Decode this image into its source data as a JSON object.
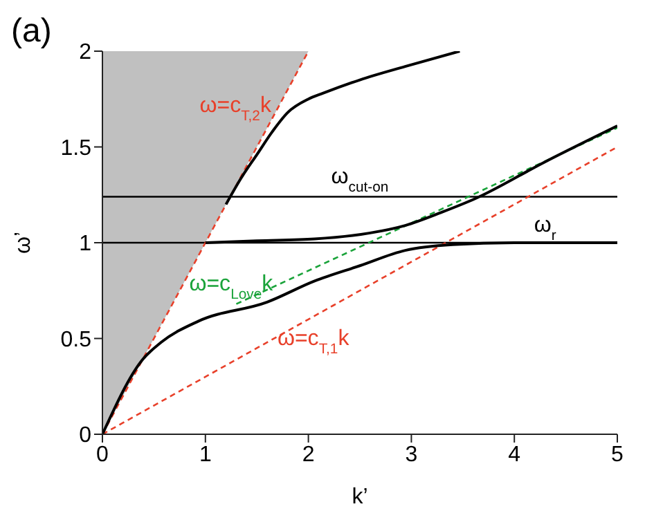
{
  "chart_data": {
    "type": "line",
    "title": "(a)",
    "xlabel": "k’",
    "ylabel": "ω’",
    "xlim": [
      0,
      5
    ],
    "ylim": [
      0,
      2
    ],
    "xticks": [
      0,
      1,
      2,
      3,
      4,
      5
    ],
    "yticks": [
      0,
      0.5,
      1,
      1.5,
      2
    ],
    "grid": false,
    "legend": false,
    "marker": "none",
    "series": [
      {
        "name": "ω=c$_{T,2}$k",
        "type": "line",
        "color": "#e8402a",
        "line_style": "dashed",
        "x": [
          0,
          0.5,
          1,
          1.5,
          2
        ],
        "values": [
          0,
          0.5,
          1,
          1.5,
          2
        ]
      },
      {
        "name": "ω=c$_{T,1}$k",
        "type": "line",
        "color": "#e8402a",
        "line_style": "dashed",
        "x": [
          0,
          1,
          2,
          3,
          4,
          5
        ],
        "values": [
          0,
          0.3,
          0.6,
          0.9,
          1.2,
          1.5
        ]
      },
      {
        "name": "ω=c$_{Love}$k",
        "type": "line",
        "color": "#1aa33a",
        "line_style": "dashed",
        "x": [
          1.3,
          5
        ],
        "values": [
          0.68,
          1.6
        ]
      },
      {
        "type": "line",
        "color": "#000000",
        "line_style": "solid",
        "x": [
          0,
          0.39,
          0.57,
          0.93,
          1.6,
          2.06,
          2.5,
          2.94,
          3.4,
          4,
          5
        ],
        "values": [
          0,
          0.39,
          0.48,
          0.59,
          0.69,
          0.8,
          0.88,
          0.96,
          0.99,
          1,
          1
        ]
      },
      {
        "type": "line",
        "color": "#000000",
        "line_style": "solid",
        "x": [
          1,
          1.5,
          2.06,
          2.59,
          2.94,
          3.3,
          3.62,
          4.29,
          5
        ],
        "values": [
          1,
          1.01,
          1.02,
          1.05,
          1.09,
          1.16,
          1.23,
          1.42,
          1.61
        ]
      },
      {
        "type": "line",
        "color": "#000000",
        "line_style": "solid",
        "x": [
          1.2,
          1.35,
          1.5,
          1.65,
          1.8,
          2,
          2.14,
          2.5,
          2.94,
          3.47
        ],
        "values": [
          1.2,
          1.34,
          1.46,
          1.58,
          1.68,
          1.75,
          1.78,
          1.85,
          1.92,
          2
        ]
      }
    ],
    "ref_lines": [
      {
        "axis": "y",
        "value": 1.24,
        "label": "ω$_{cut-on}$",
        "color": "#000000"
      },
      {
        "axis": "y",
        "value": 1,
        "label": "ω$_{r}$",
        "color": "#000000"
      }
    ]
  }
}
